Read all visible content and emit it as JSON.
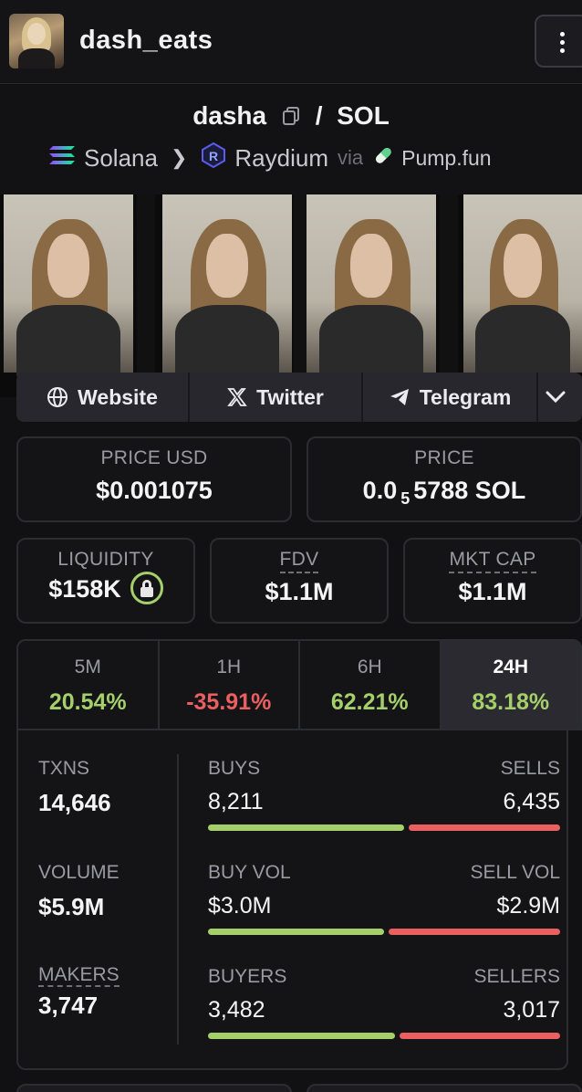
{
  "header": {
    "title": "dash_eats"
  },
  "pair": {
    "base": "dasha",
    "slash": "/",
    "quote": "SOL",
    "chain": "Solana",
    "dex": "Raydium",
    "via": "via",
    "launchpad": "Pump.fun"
  },
  "social": {
    "website": "Website",
    "twitter": "Twitter",
    "telegram": "Telegram"
  },
  "price": {
    "usd_label": "PRICE USD",
    "usd_value": "$0.001075",
    "native_label": "PRICE",
    "native_prefix": "0.0",
    "native_zeros": "5",
    "native_digits": "5788 SOL"
  },
  "metrics": {
    "liquidity_label": "LIQUIDITY",
    "liquidity_value": "$158K",
    "fdv_label": "FDV",
    "fdv_value": "$1.1M",
    "mktcap_label": "MKT CAP",
    "mktcap_value": "$1.1M"
  },
  "timeframes": [
    {
      "label": "5M",
      "value": "20.54%"
    },
    {
      "label": "1H",
      "value": "-35.91%"
    },
    {
      "label": "6H",
      "value": "62.21%"
    },
    {
      "label": "24H",
      "value": "83.18%"
    }
  ],
  "stats": {
    "txns_label": "TXNS",
    "txns_value": "14,646",
    "volume_label": "VOLUME",
    "volume_value": "$5.9M",
    "makers_label": "MAKERS",
    "makers_value": "3,747",
    "buys_label": "BUYS",
    "buys_value": "8,211",
    "sells_label": "SELLS",
    "sells_value": "6,435",
    "buyvol_label": "BUY VOL",
    "buyvol_value": "$3.0M",
    "sellvol_label": "SELL VOL",
    "sellvol_value": "$2.9M",
    "buyers_label": "BUYERS",
    "buyers_value": "3,482",
    "sellers_label": "SELLERS",
    "sellers_value": "3,017"
  },
  "colors": {
    "positive": "#a5cf6a",
    "negative": "#ea5f5f",
    "background": "#111113"
  },
  "icons": {
    "menu": "more-vertical-icon",
    "copy": "copy-icon",
    "solana": "solana-logo-icon",
    "raydium": "raydium-logo-icon",
    "pump": "pill-icon",
    "website": "globe-icon",
    "twitter": "x-logo-icon",
    "telegram": "telegram-icon",
    "expand": "chevron-down-icon",
    "lock": "lock-icon"
  }
}
